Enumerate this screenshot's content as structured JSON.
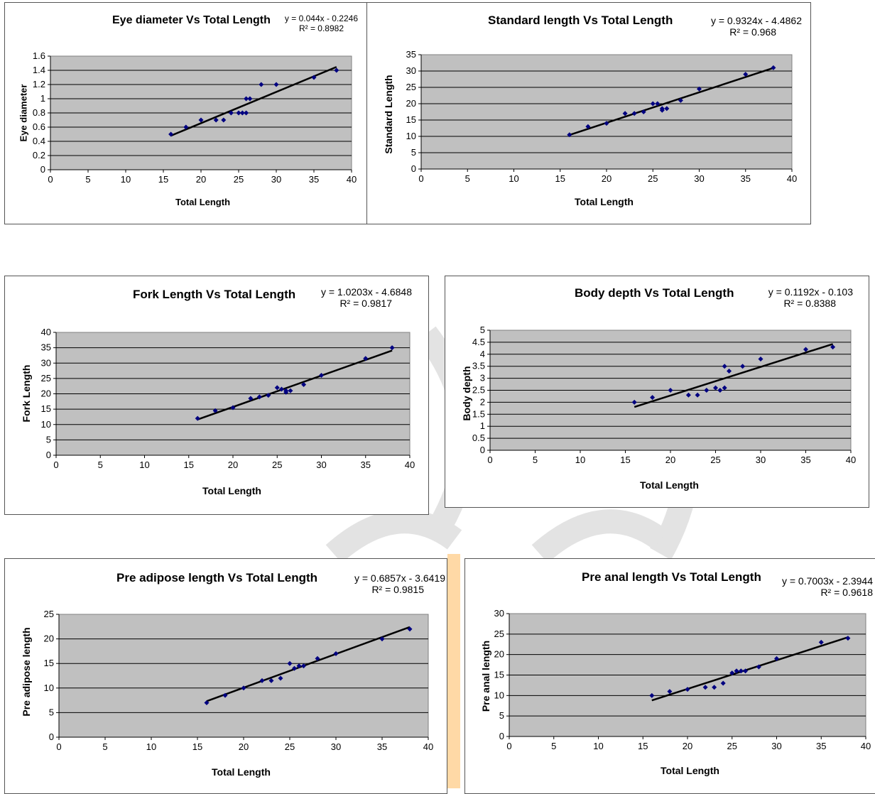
{
  "chart_data": [
    {
      "type": "scatter",
      "title": "Eye diameter Vs Total Length",
      "equation": "y = 0.044x - 0.2246",
      "r2": "R² = 0.8982",
      "xlabel": "Total Length",
      "ylabel": "Eye diameter",
      "xlim": [
        0,
        40
      ],
      "xstep": 5,
      "ylim": [
        0,
        1.6
      ],
      "ystep": 0.2,
      "xticks": [
        "0",
        "5",
        "10",
        "15",
        "20",
        "25",
        "30",
        "35",
        "40"
      ],
      "yticks": [
        "0",
        "0.2",
        "0.4",
        "0.6",
        "0.8",
        "1",
        "1.2",
        "1.4",
        "1.6"
      ],
      "trend": {
        "slope": 0.044,
        "intercept": -0.2246,
        "x": [
          16,
          38
        ]
      },
      "points": [
        [
          16,
          0.5
        ],
        [
          18,
          0.6
        ],
        [
          20,
          0.7
        ],
        [
          22,
          0.7
        ],
        [
          23,
          0.7
        ],
        [
          24,
          0.8
        ],
        [
          25,
          0.8
        ],
        [
          25.5,
          0.8
        ],
        [
          26,
          0.8
        ],
        [
          26,
          1.0
        ],
        [
          26.5,
          1.0
        ],
        [
          28,
          1.2
        ],
        [
          30,
          1.2
        ],
        [
          35,
          1.3
        ],
        [
          38,
          1.4
        ]
      ],
      "grid": true,
      "legend": "none",
      "marker_color": "#000080",
      "plot_bg": "#c0c0c0"
    },
    {
      "type": "scatter",
      "title": "Standard length Vs Total Length",
      "equation": "y = 0.9324x - 4.4862",
      "r2": "R² = 0.968",
      "xlabel": "Total Length",
      "ylabel": "Standard Length",
      "xlim": [
        0,
        40
      ],
      "xstep": 5,
      "ylim": [
        0,
        35
      ],
      "ystep": 5,
      "xticks": [
        "0",
        "5",
        "10",
        "15",
        "20",
        "25",
        "30",
        "35",
        "40"
      ],
      "yticks": [
        "0",
        "5",
        "10",
        "15",
        "20",
        "25",
        "30",
        "35"
      ],
      "trend": {
        "slope": 0.9324,
        "intercept": -4.4862,
        "x": [
          16,
          38
        ]
      },
      "points": [
        [
          16,
          10.5
        ],
        [
          18,
          13
        ],
        [
          20,
          14
        ],
        [
          22,
          17
        ],
        [
          23,
          17
        ],
        [
          24,
          17.5
        ],
        [
          25,
          20
        ],
        [
          25.5,
          20
        ],
        [
          26,
          18
        ],
        [
          26,
          18.5
        ],
        [
          26.5,
          18.5
        ],
        [
          28,
          21
        ],
        [
          30,
          24.5
        ],
        [
          35,
          29
        ],
        [
          38,
          31
        ]
      ],
      "grid": true,
      "legend": "none",
      "marker_color": "#000080",
      "plot_bg": "#c0c0c0"
    },
    {
      "type": "scatter",
      "title": "Fork Length Vs Total Length",
      "equation": "y = 1.0203x - 4.6848",
      "r2": "R² = 0.9817",
      "xlabel": "Total Length",
      "ylabel": "Fork Length",
      "xlim": [
        0,
        40
      ],
      "xstep": 5,
      "ylim": [
        0,
        40
      ],
      "ystep": 5,
      "xticks": [
        "0",
        "5",
        "10",
        "15",
        "20",
        "25",
        "30",
        "35",
        "40"
      ],
      "yticks": [
        "0",
        "5",
        "10",
        "15",
        "20",
        "25",
        "30",
        "35",
        "40"
      ],
      "trend": {
        "slope": 1.0203,
        "intercept": -4.6848,
        "x": [
          16,
          38
        ]
      },
      "points": [
        [
          16,
          12
        ],
        [
          18,
          14.5
        ],
        [
          20,
          15.5
        ],
        [
          22,
          18.5
        ],
        [
          23,
          19
        ],
        [
          24,
          19.5
        ],
        [
          25,
          22
        ],
        [
          25.5,
          21.5
        ],
        [
          26,
          20.5
        ],
        [
          26,
          21
        ],
        [
          26.5,
          21
        ],
        [
          28,
          23
        ],
        [
          30,
          26
        ],
        [
          35,
          31.5
        ],
        [
          38,
          35
        ]
      ],
      "grid": true,
      "legend": "none",
      "marker_color": "#000080",
      "plot_bg": "#c0c0c0"
    },
    {
      "type": "scatter",
      "title": "Body depth Vs Total Length",
      "equation": "y = 0.1192x - 0.103",
      "r2": "R² = 0.8388",
      "xlabel": "Total Length",
      "ylabel": "Body depth",
      "xlim": [
        0,
        40
      ],
      "xstep": 5,
      "ylim": [
        0,
        5
      ],
      "ystep": 0.5,
      "xticks": [
        "0",
        "5",
        "10",
        "15",
        "20",
        "25",
        "30",
        "35",
        "40"
      ],
      "yticks": [
        "0",
        "0.5",
        "1",
        "1.5",
        "2",
        "2.5",
        "3",
        "3.5",
        "4",
        "4.5",
        "5"
      ],
      "trend": {
        "slope": 0.1192,
        "intercept": -0.103,
        "x": [
          16,
          38
        ]
      },
      "points": [
        [
          16,
          2
        ],
        [
          18,
          2.2
        ],
        [
          20,
          2.5
        ],
        [
          22,
          2.3
        ],
        [
          23,
          2.3
        ],
        [
          24,
          2.5
        ],
        [
          25,
          2.6
        ],
        [
          25.5,
          2.5
        ],
        [
          26,
          2.6
        ],
        [
          26,
          3.5
        ],
        [
          26.5,
          3.3
        ],
        [
          28,
          3.5
        ],
        [
          30,
          3.8
        ],
        [
          35,
          4.2
        ],
        [
          38,
          4.3
        ]
      ],
      "grid": true,
      "legend": "none",
      "marker_color": "#000080",
      "plot_bg": "#c0c0c0"
    },
    {
      "type": "scatter",
      "title": "Pre adipose  length Vs Total Length",
      "equation": "y = 0.6857x - 3.6419",
      "r2": "R² = 0.9815",
      "xlabel": "Total Length",
      "ylabel": "Pre adipose  length",
      "xlim": [
        0,
        40
      ],
      "xstep": 5,
      "ylim": [
        0,
        25
      ],
      "ystep": 5,
      "xticks": [
        "0",
        "5",
        "10",
        "15",
        "20",
        "25",
        "30",
        "35",
        "40"
      ],
      "yticks": [
        "0",
        "5",
        "10",
        "15",
        "20",
        "25"
      ],
      "trend": {
        "slope": 0.6857,
        "intercept": -3.6419,
        "x": [
          16,
          38
        ]
      },
      "points": [
        [
          16,
          7
        ],
        [
          18,
          8.5
        ],
        [
          20,
          10
        ],
        [
          22,
          11.5
        ],
        [
          23,
          11.5
        ],
        [
          24,
          12
        ],
        [
          25,
          15
        ],
        [
          25.5,
          14
        ],
        [
          26,
          14.5
        ],
        [
          26.5,
          14.5
        ],
        [
          28,
          16
        ],
        [
          30,
          17
        ],
        [
          35,
          20
        ],
        [
          38,
          22
        ]
      ],
      "grid": true,
      "legend": "none",
      "marker_color": "#000080",
      "plot_bg": "#c0c0c0"
    },
    {
      "type": "scatter",
      "title": "Pre anal length Vs Total Length",
      "equation": "y = 0.7003x - 2.3944",
      "r2": "R² = 0.9618",
      "xlabel": "Total Length",
      "ylabel": "Pre anal length",
      "xlim": [
        0,
        40
      ],
      "xstep": 5,
      "ylim": [
        0,
        30
      ],
      "ystep": 5,
      "xticks": [
        "0",
        "5",
        "10",
        "15",
        "20",
        "25",
        "30",
        "35",
        "40"
      ],
      "yticks": [
        "0",
        "5",
        "10",
        "15",
        "20",
        "25",
        "30"
      ],
      "trend": {
        "slope": 0.7003,
        "intercept": -2.3944,
        "x": [
          16,
          38
        ]
      },
      "points": [
        [
          16,
          10
        ],
        [
          18,
          11
        ],
        [
          20,
          11.5
        ],
        [
          22,
          12
        ],
        [
          23,
          12
        ],
        [
          24,
          13
        ],
        [
          25,
          15.5
        ],
        [
          25.5,
          16
        ],
        [
          26,
          16
        ],
        [
          26.5,
          16
        ],
        [
          28,
          17
        ],
        [
          30,
          19
        ],
        [
          35,
          23
        ],
        [
          38,
          24
        ]
      ],
      "grid": true,
      "legend": "none",
      "marker_color": "#000080",
      "plot_bg": "#c0c0c0"
    }
  ]
}
